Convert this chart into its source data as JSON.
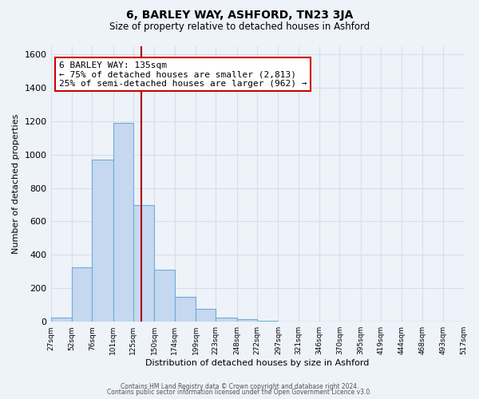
{
  "title": "6, BARLEY WAY, ASHFORD, TN23 3JA",
  "subtitle": "Size of property relative to detached houses in Ashford",
  "xlabel": "Distribution of detached houses by size in Ashford",
  "ylabel": "Number of detached properties",
  "bins": [
    27,
    52,
    76,
    101,
    125,
    150,
    174,
    199,
    223,
    248,
    272,
    297,
    321,
    346,
    370,
    395,
    419,
    444,
    468,
    493,
    517
  ],
  "heights": [
    25,
    325,
    970,
    1190,
    700,
    310,
    150,
    75,
    25,
    15,
    5,
    0,
    0,
    0,
    0,
    0,
    0,
    0,
    0,
    0
  ],
  "bar_color": "#c5d8f0",
  "bar_edge_color": "#6baed6",
  "vline_x": 135,
  "vline_color": "#aa0000",
  "annotation_text": "6 BARLEY WAY: 135sqm\n← 75% of detached houses are smaller (2,813)\n25% of semi-detached houses are larger (962) →",
  "annotation_box_color": "#ffffff",
  "annotation_box_edge": "#cc0000",
  "ylim": [
    0,
    1650
  ],
  "yticks": [
    0,
    200,
    400,
    600,
    800,
    1000,
    1200,
    1400,
    1600
  ],
  "tick_labels": [
    "27sqm",
    "52sqm",
    "76sqm",
    "101sqm",
    "125sqm",
    "150sqm",
    "174sqm",
    "199sqm",
    "223sqm",
    "248sqm",
    "272sqm",
    "297sqm",
    "321sqm",
    "346sqm",
    "370sqm",
    "395sqm",
    "419sqm",
    "444sqm",
    "468sqm",
    "493sqm",
    "517sqm"
  ],
  "footer_line1": "Contains HM Land Registry data © Crown copyright and database right 2024.",
  "footer_line2": "Contains public sector information licensed under the Open Government Licence v3.0.",
  "bg_color": "#eef2f9",
  "grid_color": "#d8dfe8"
}
